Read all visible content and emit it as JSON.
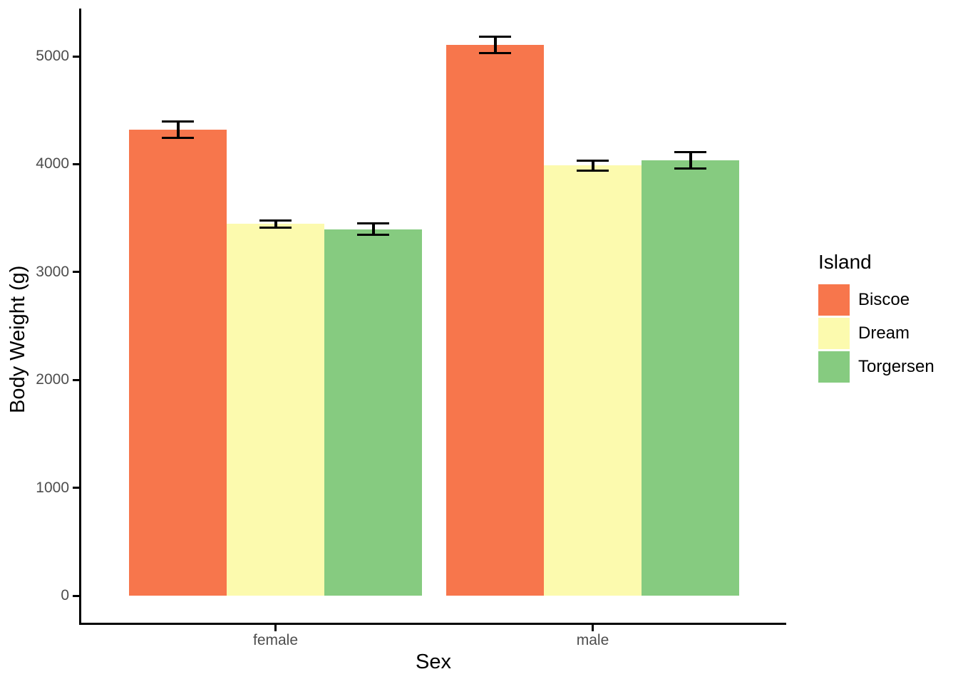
{
  "chart_data": {
    "type": "bar",
    "title": "",
    "xlabel": "Sex",
    "ylabel": "Body Weight (g)",
    "categories": [
      "female",
      "male"
    ],
    "series": [
      {
        "name": "Biscoe",
        "color": "#F7764C",
        "values": [
          4319,
          5105
        ],
        "stderr": [
          74,
          76
        ]
      },
      {
        "name": "Dream",
        "color": "#FCFAAE",
        "values": [
          3446,
          3987
        ],
        "stderr": [
          34,
          44
        ]
      },
      {
        "name": "Torgersen",
        "color": "#86CB80",
        "values": [
          3396,
          4035
        ],
        "stderr": [
          53,
          78
        ]
      }
    ],
    "yticks": [
      0,
      1000,
      2000,
      3000,
      4000,
      5000
    ],
    "ylim": [
      0,
      5440
    ],
    "error_bars": "standard-error",
    "legend_title": "Island",
    "legend_position": "right",
    "grid": false,
    "axis_color": "#000000",
    "tick_label_color": "#4D4D4D"
  }
}
